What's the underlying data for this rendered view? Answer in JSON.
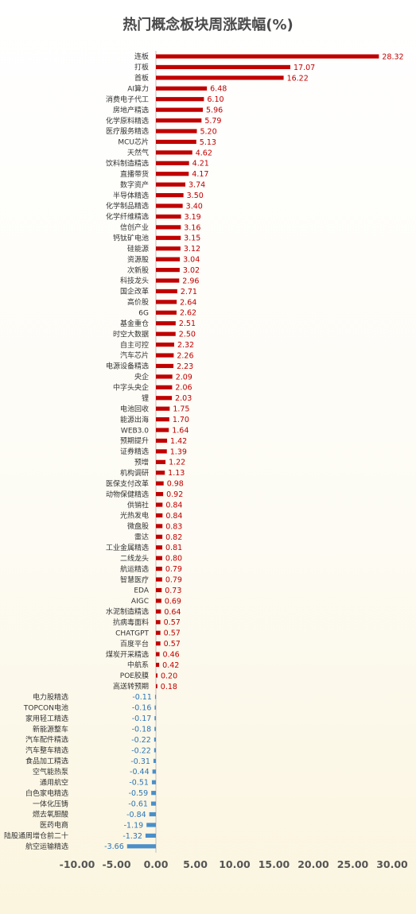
{
  "chart_data": {
    "type": "bar",
    "orientation": "horizontal",
    "title": "热门概念板块周涨跌幅(%)",
    "xlim": [
      -10,
      30
    ],
    "x_ticks": [
      "-10.00",
      "-5.00",
      "0.00",
      "5.00",
      "10.00",
      "15.00",
      "20.00",
      "25.00",
      "30.00"
    ],
    "x_tick_values": [
      -10,
      -5,
      0,
      5,
      10,
      15,
      20,
      25,
      30
    ],
    "grid": false,
    "legend": "none",
    "colors": {
      "positive": "#c00000",
      "negative": "#4a8fc9",
      "positive_label": "#c00000",
      "negative_label": "#2e75b6"
    },
    "categories": [
      "连板",
      "打板",
      "首板",
      "AI算力",
      "消费电子代工",
      "房地产精选",
      "化学原料精选",
      "医疗服务精选",
      "MCU芯片",
      "天然气",
      "饮料制造精选",
      "直播带货",
      "数字资产",
      "半导体精选",
      "化学制品精选",
      "化学纤维精选",
      "信创产业",
      "钙钛矿电池",
      "硅能源",
      "资源股",
      "次新股",
      "科技龙头",
      "国企改革",
      "高价股",
      "6G",
      "基金重仓",
      "时空大数据",
      "自主可控",
      "汽车芯片",
      "电源设备精选",
      "央企",
      "中字头央企",
      "锂",
      "电池回收",
      "能源出海",
      "WEB3.0",
      "预期提升",
      "证券精选",
      "预增",
      "机构调研",
      "医保支付改革",
      "动物保健精选",
      "供销社",
      "光热发电",
      "微盘股",
      "雷达",
      "工业金属精选",
      "二线龙头",
      "航运精选",
      "智慧医疗",
      "EDA",
      "AIGC",
      "水泥制造精选",
      "抗病毒面料",
      "CHATGPT",
      "百度平台",
      "煤炭开采精选",
      "中航系",
      "POE胶膜",
      "高送转预期",
      "电力股精选",
      "TOPCON电池",
      "家用轻工精选",
      "新能源整车",
      "汽车配件精选",
      "汽车整车精选",
      "食品加工精选",
      "空气能热泵",
      "通用航空",
      "白色家电精选",
      "一体化压铸",
      "燃去氧胆酸",
      "医药电商",
      "陆股通周增仓前二十",
      "航空运输精选"
    ],
    "values": [
      28.32,
      17.07,
      16.22,
      6.48,
      6.1,
      5.96,
      5.79,
      5.2,
      5.13,
      4.62,
      4.21,
      4.17,
      3.74,
      3.5,
      3.4,
      3.19,
      3.16,
      3.15,
      3.12,
      3.04,
      3.02,
      2.96,
      2.71,
      2.64,
      2.62,
      2.51,
      2.5,
      2.32,
      2.26,
      2.23,
      2.09,
      2.06,
      2.03,
      1.75,
      1.7,
      1.64,
      1.42,
      1.39,
      1.22,
      1.13,
      0.98,
      0.92,
      0.84,
      0.84,
      0.83,
      0.82,
      0.81,
      0.8,
      0.79,
      0.79,
      0.73,
      0.69,
      0.64,
      0.57,
      0.57,
      0.57,
      0.46,
      0.42,
      0.2,
      0.18,
      -0.11,
      -0.16,
      -0.17,
      -0.18,
      -0.22,
      -0.22,
      -0.31,
      -0.44,
      -0.51,
      -0.59,
      -0.61,
      -0.84,
      -1.19,
      -1.32,
      -3.66
    ]
  }
}
